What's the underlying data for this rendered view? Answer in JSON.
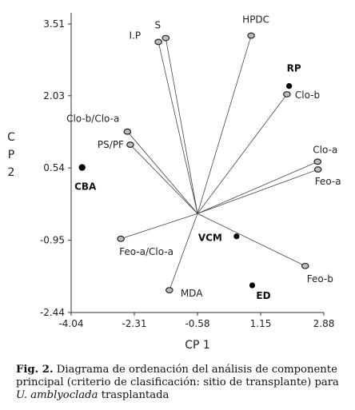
{
  "chart_data": {
    "type": "scatter",
    "subtype": "pca-biplot",
    "xlabel": "CP 1",
    "ylabel": "C P 2",
    "xlim": [
      -4.04,
      2.88
    ],
    "ylim": [
      -2.44,
      3.51
    ],
    "x_ticks": [
      "-4.04",
      "-2.31",
      "-0.58",
      "1.15",
      "2.88"
    ],
    "y_ticks": [
      "3.51",
      "2.03",
      "0.54",
      "-0.95",
      "-2.44"
    ],
    "vector_origin": [
      -0.58,
      -0.4
    ],
    "vectors": [
      {
        "label": "S",
        "x": -1.45,
        "y": 3.22
      },
      {
        "label": "I.P",
        "x": -1.65,
        "y": 3.14
      },
      {
        "label": "HPDC",
        "x": 0.89,
        "y": 3.27
      },
      {
        "label": "Clo-b",
        "x": 1.87,
        "y": 2.06
      },
      {
        "label": "Clo-b/Clo-a",
        "x": -2.5,
        "y": 1.29
      },
      {
        "label": "PS/PF",
        "x": -2.42,
        "y": 1.02
      },
      {
        "label": "Clo-a",
        "x": 2.71,
        "y": 0.67
      },
      {
        "label": "Feo-a",
        "x": 2.72,
        "y": 0.51
      },
      {
        "label": "Feo-a/Clo-a",
        "x": -2.68,
        "y": -0.92
      },
      {
        "label": "MDA",
        "x": -1.35,
        "y": -1.98
      },
      {
        "label": "Feo-b",
        "x": 2.37,
        "y": -1.48
      }
    ],
    "sites": [
      {
        "label": "RP",
        "x": 1.93,
        "y": 2.23
      },
      {
        "label": "CBA",
        "x": -3.74,
        "y": 0.55
      },
      {
        "label": "VCM",
        "x": 0.49,
        "y": -0.87
      },
      {
        "label": "ED",
        "x": 0.92,
        "y": -1.88
      }
    ]
  },
  "caption": {
    "fig_number": "Fig. 2.",
    "text_before_species": "Diagrama de ordenación del análisis de componente principal (criterio de clasificación: sitio de transplante) para",
    "species": "U. amblyoclada",
    "text_after_species": "trasplantada"
  }
}
